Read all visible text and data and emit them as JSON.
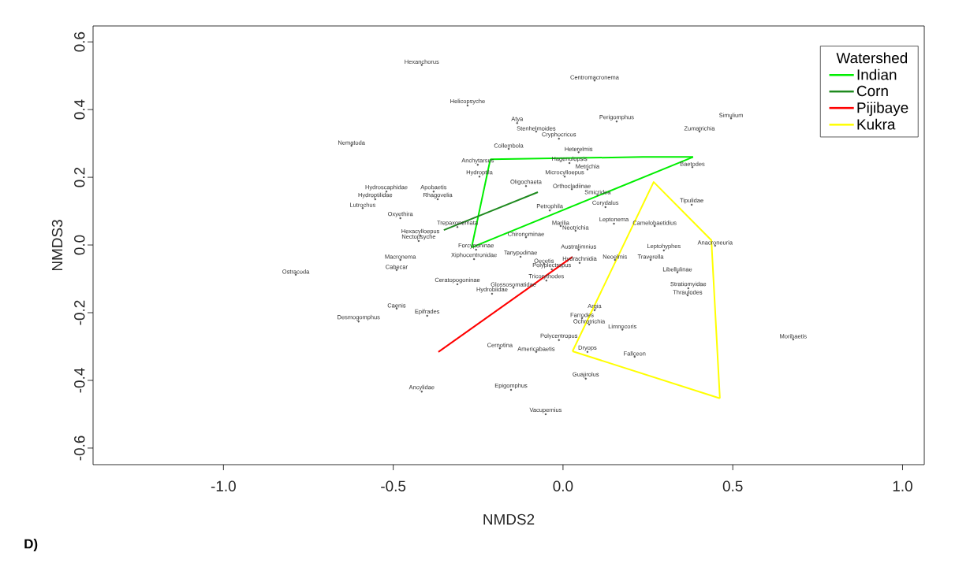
{
  "chart_data": {
    "type": "line",
    "xlabel": "NMDS2",
    "ylabel": "NMDS3",
    "legend_title": "Watershed",
    "legend": "top right",
    "marker": "none",
    "line_style": "solid",
    "xlim": [
      -1.384,
      1.064
    ],
    "ylim": [
      -0.649,
      0.647
    ],
    "xticks": [
      {
        "value": -1,
        "label": "-1.0"
      },
      -0.5,
      {
        "value": 0,
        "label": "0.0"
      },
      0.5,
      {
        "value": 1,
        "label": "1.0"
      }
    ],
    "yticks": [
      -0.6,
      -0.4,
      -0.2,
      {
        "value": 0,
        "label": "0.0"
      },
      0.2,
      0.4,
      0.6
    ],
    "series": [
      {
        "name": "Indian",
        "color": "#00ee00",
        "x": [
          -0.214,
          0.235,
          0.383
        ],
        "values": [
          0.253,
          0.26,
          0.26
        ]
      },
      {
        "color": "#00ee00",
        "x": [
          -0.269,
          0.383
        ],
        "values": [
          -0.007,
          0.26
        ]
      },
      {
        "color": "#00ee00",
        "x": [
          -0.269,
          -0.214
        ],
        "values": [
          -0.007,
          0.253
        ]
      },
      {
        "name": "Corn",
        "color": "#1f8a1f",
        "x": [
          -0.351,
          -0.074
        ],
        "values": [
          0.044,
          0.156
        ]
      },
      {
        "name": "Pijibaye",
        "color": "#ff0000",
        "x": [
          -0.367,
          0.028
        ],
        "values": [
          -0.316,
          -0.035
        ]
      },
      {
        "name": "Kukra",
        "color": "#ffff00",
        "x": [
          0.028,
          0.267,
          0.437,
          0.462
        ],
        "values": [
          -0.314,
          0.186,
          0.014,
          -0.453
        ]
      },
      {
        "color": "#ffff00",
        "x": [
          0.028,
          0.462
        ],
        "values": [
          -0.314,
          -0.453
        ]
      },
      {
        "type": "scatter",
        "marker": "circle",
        "color": "#555555",
        "x": [
          -0.416,
          0.093,
          -0.281,
          -0.135,
          -0.079,
          -0.012,
          0.158,
          0.495,
          0.402,
          -0.623,
          -0.16,
          0.046,
          -0.251,
          0.019,
          0.072,
          0.381,
          -0.246,
          0.005,
          -0.109,
          0.026,
          -0.52,
          -0.381,
          -0.553,
          -0.369,
          0.102,
          0.125,
          -0.039,
          0.379,
          -0.59,
          -0.479,
          -0.311,
          -0.007,
          0.037,
          0.15,
          0.27,
          -0.109,
          -0.42,
          -0.425,
          0.448,
          -0.256,
          0.046,
          0.297,
          -0.262,
          -0.125,
          0.153,
          0.258,
          -0.479,
          0.049,
          -0.056,
          -0.033,
          -0.49,
          -0.787,
          0.337,
          -0.049,
          -0.311,
          -0.146,
          0.369,
          -0.209,
          0.367,
          -0.49,
          0.093,
          -0.4,
          0.056,
          -0.602,
          0.077,
          0.175,
          0.678,
          -0.012,
          -0.186,
          -0.079,
          0.072,
          0.211,
          0.067,
          -0.153,
          -0.416,
          -0.051
        ],
        "values": [
          0.532,
          0.486,
          0.412,
          0.36,
          0.335,
          0.314,
          0.365,
          0.374,
          0.335,
          0.293,
          0.284,
          0.274,
          0.237,
          0.242,
          0.223,
          0.23,
          0.202,
          0.202,
          0.174,
          0.165,
          0.158,
          0.158,
          0.135,
          0.135,
          0.147,
          0.112,
          0.102,
          0.119,
          0.109,
          0.079,
          0.053,
          0.056,
          0.042,
          0.063,
          0.056,
          0.023,
          0.028,
          0.012,
          -0.002,
          -0.014,
          -0.014,
          -0.016,
          -0.042,
          -0.035,
          -0.044,
          -0.044,
          -0.044,
          -0.053,
          -0.056,
          -0.072,
          -0.074,
          -0.088,
          -0.081,
          -0.105,
          -0.116,
          -0.126,
          -0.128,
          -0.144,
          -0.149,
          -0.188,
          -0.193,
          -0.209,
          -0.216,
          -0.226,
          -0.235,
          -0.25,
          -0.279,
          -0.281,
          -0.305,
          -0.316,
          -0.316,
          -0.33,
          -0.395,
          -0.428,
          -0.433,
          -0.5
        ],
        "value_labels": [
          "Hexanchorus",
          "Centromacronema",
          "Helicopsyche",
          "Atya",
          "Stenhelmoides",
          "Cryphocricos",
          "Perigomphus",
          "Simulium",
          "Zumatrichia",
          "Nematoda",
          "Collembola",
          "Heterelmis",
          "Anchytarsus",
          "Hagenulopsis",
          "Metrichia",
          "Baetodes",
          "Hydroptila",
          "Microcylloepus",
          "Oligochaeta",
          "Orthocladiinae",
          "Hydroscaphidae",
          "Apobaetis",
          "Hydroptilidae",
          "Rhagovelia",
          "Smicridea",
          "Corydalus",
          "Petrophila",
          "Tipulidae",
          "Lutrochus",
          "Oxyethira",
          "Trepaxonemata",
          "Marilia",
          "Neotrichia",
          "Leptonema",
          "Camelobaetidius",
          "Chironominae",
          "Hexacylloepus",
          "Nectopsyche",
          "Anacroneuria",
          "Forcyponinae",
          "Australimnius",
          "Leptohyphes",
          "Xiphocentronidae",
          "Tanypodinae",
          "Neoelmis",
          "Traverella",
          "Macronema",
          "Hydrachnidia",
          "Oecetis",
          "Polyplectropus",
          "Cabecar",
          "Ostracoda",
          "Libellulinae",
          "Tricorythodes",
          "Ceratopogoninae",
          "Glossosomatidae",
          "Stratiomyidae",
          "Hydrobiidae",
          "Thraulodes",
          "Caenis",
          "Argia",
          "Epifrades",
          "Farrodes",
          "Desmogomphus",
          "Ochrotrichia",
          "Limnocoris",
          "Moribaetis",
          "Polycentropus",
          "Cernotina",
          "Americabaetis",
          "Dryops",
          "Fallceon",
          "Guajirolus",
          "Epigomphus",
          "Ancylidae",
          "Vacupernius"
        ]
      }
    ],
    "annotations": [
      "D)"
    ]
  }
}
